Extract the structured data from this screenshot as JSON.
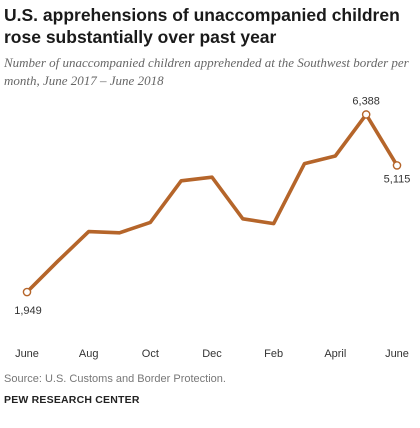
{
  "chart_data": {
    "type": "line",
    "title": "U.S. apprehensions of unaccompanied children rose substantially over past year",
    "subtitle": "Number of unaccompanied children apprehended at the Southwest border per month, June 2017 – June 2018",
    "x": [
      "2017-06",
      "2017-07",
      "2017-08",
      "2017-09",
      "2017-10",
      "2017-11",
      "2017-12",
      "2018-01",
      "2018-02",
      "2018-03",
      "2018-04",
      "2018-05",
      "2018-06"
    ],
    "series": [
      {
        "values": [
          1949,
          2720,
          3460,
          3430,
          3690,
          4730,
          4820,
          3780,
          3660,
          5160,
          5350,
          6388,
          5115
        ]
      }
    ],
    "xtick_labels": [
      {
        "x": "2017-06",
        "label": "June"
      },
      {
        "x": "2017-08",
        "label": "Aug"
      },
      {
        "x": "2017-10",
        "label": "Oct"
      },
      {
        "x": "2017-12",
        "label": "Dec"
      },
      {
        "x": "2018-02",
        "label": "Feb"
      },
      {
        "x": "2018-04",
        "label": "April"
      },
      {
        "x": "2018-06",
        "label": "June"
      }
    ],
    "annotations": [
      {
        "x": "2017-06",
        "value": 1949,
        "label": "1,949"
      },
      {
        "x": "2018-05",
        "value": 6388,
        "label": "6,388"
      },
      {
        "x": "2018-06",
        "value": 5115,
        "label": "5,115"
      }
    ],
    "ylim": [
      1000,
      7000
    ],
    "line_color": "#b5652a",
    "grid": false,
    "xlabel": "",
    "ylabel": ""
  },
  "footer": {
    "source": "Source: U.S. Customs and Border Protection.",
    "brand": "PEW RESEARCH CENTER"
  }
}
